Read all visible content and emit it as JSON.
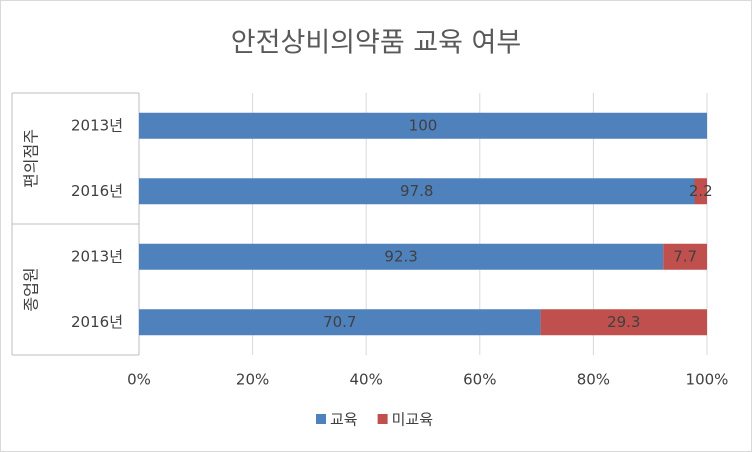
{
  "chart_data": {
    "type": "stacked-bar-horizontal",
    "title": "안전상비의약품 교육 여부",
    "groups": [
      {
        "name": "편의점주",
        "categories": [
          "2013년",
          "2016년"
        ]
      },
      {
        "name": "종업원",
        "categories": [
          "2013년",
          "2016년"
        ]
      }
    ],
    "series": [
      {
        "name": "교육",
        "color": "#4f81bd",
        "values": [
          100,
          97.8,
          92.3,
          70.7
        ]
      },
      {
        "name": "미교육",
        "color": "#c0504d",
        "values": [
          null,
          2.2,
          7.7,
          29.3
        ]
      }
    ],
    "xlim": [
      0,
      100
    ],
    "xticks": [
      {
        "value": 0,
        "label": "0%"
      },
      {
        "value": 20,
        "label": "20%"
      },
      {
        "value": 40,
        "label": "40%"
      },
      {
        "value": 60,
        "label": "60%"
      },
      {
        "value": 80,
        "label": "80%"
      },
      {
        "value": 100,
        "label": "100%"
      }
    ],
    "grid": true,
    "legend": "bottom"
  }
}
